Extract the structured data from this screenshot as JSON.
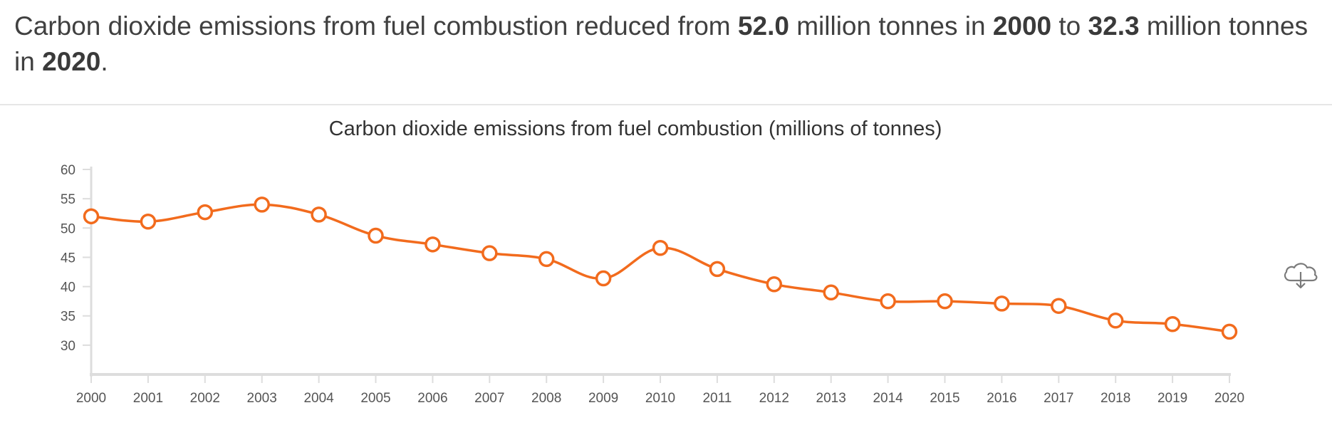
{
  "summary": {
    "t1": "Carbon dioxide emissions from fuel combustion reduced from ",
    "b1": "52.0",
    "t2": " million tonnes in ",
    "b2": "2000",
    "t3": " to ",
    "b3": "32.3",
    "t4": " million tonnes in ",
    "b4": "2020",
    "t5": "."
  },
  "download_icon": "cloud-download-icon",
  "colors": {
    "series": "#f26b1d",
    "axis": "#dddddd",
    "text": "#404040"
  },
  "chart_data": {
    "type": "line",
    "title": "Carbon dioxide emissions from fuel combustion (millions of tonnes)",
    "xlabel": "",
    "ylabel": "",
    "categories": [
      "2000",
      "2001",
      "2002",
      "2003",
      "2004",
      "2005",
      "2006",
      "2007",
      "2008",
      "2009",
      "2010",
      "2011",
      "2012",
      "2013",
      "2014",
      "2015",
      "2016",
      "2017",
      "2018",
      "2019",
      "2020"
    ],
    "series": [
      {
        "values": [
          52.0,
          51.1,
          52.7,
          54.0,
          52.3,
          48.7,
          47.2,
          45.7,
          44.7,
          41.4,
          46.6,
          43.0,
          40.4,
          39.0,
          37.5,
          37.5,
          37.1,
          36.7,
          34.2,
          33.6,
          32.3
        ]
      }
    ],
    "yticks": [
      30,
      35,
      40,
      45,
      50,
      55,
      60
    ],
    "ylim": [
      25,
      60
    ],
    "grid": false,
    "legend": "none"
  }
}
